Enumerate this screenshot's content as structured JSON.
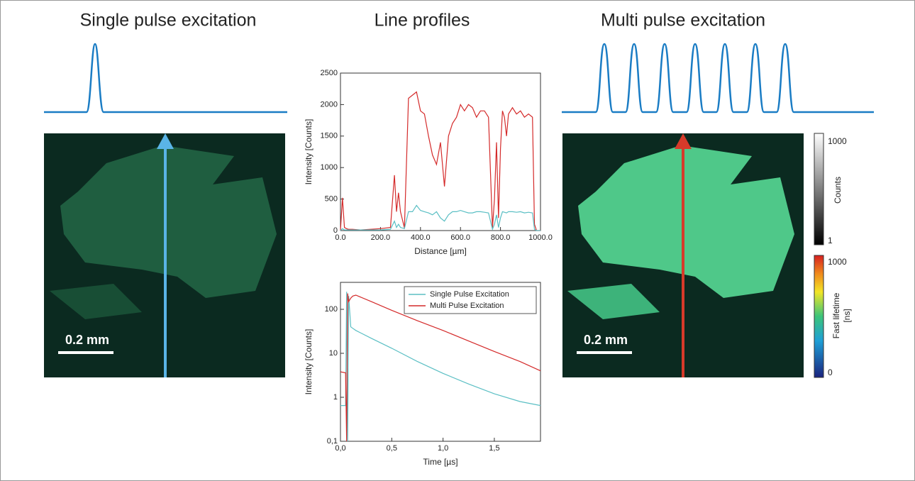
{
  "headings": [
    "Single pulse excitation",
    "Line profiles",
    "Multi pulse excitation"
  ],
  "scale_bars": [
    "0.2 mm",
    "0.2 mm"
  ],
  "colorbars": [
    {
      "max": "1000",
      "min": "1",
      "label": [
        "Counts"
      ]
    },
    {
      "max": "1000",
      "min": "0",
      "label": [
        "Fast lifetime",
        "[ns]"
      ]
    }
  ],
  "chart_data": [
    {
      "type": "line",
      "x_label": "Distance [µm]",
      "y_label": "Intensity [Counts]",
      "xlim": [
        0,
        1000
      ],
      "ylim": [
        0,
        2500
      ],
      "xticks": [
        {
          "value": 0,
          "label": "0.0"
        },
        {
          "value": 200,
          "label": "200.0"
        },
        {
          "value": 400,
          "label": "400.0"
        },
        {
          "value": 600,
          "label": "600.0"
        },
        {
          "value": 800,
          "label": "800.0"
        },
        {
          "value": 1000,
          "label": "1000.0"
        }
      ],
      "yticks": [
        0,
        500,
        1000,
        1500,
        2000,
        2500
      ],
      "x": [
        0,
        10,
        20,
        30,
        40,
        60,
        100,
        150,
        200,
        250,
        270,
        280,
        290,
        300,
        320,
        340,
        360,
        380,
        400,
        420,
        440,
        460,
        480,
        500,
        520,
        540,
        560,
        580,
        600,
        620,
        640,
        660,
        680,
        700,
        720,
        740,
        760,
        770,
        780,
        790,
        800,
        810,
        820,
        830,
        840,
        860,
        880,
        900,
        920,
        940,
        960,
        970,
        980,
        990,
        1000
      ],
      "series": [
        {
          "color": "#d42a2a",
          "values": [
            0,
            520,
            50,
            30,
            20,
            20,
            10,
            20,
            30,
            50,
            880,
            300,
            600,
            300,
            40,
            2100,
            2150,
            2200,
            1900,
            1850,
            1500,
            1200,
            1050,
            1400,
            700,
            1500,
            1700,
            1800,
            2000,
            1900,
            2000,
            1950,
            1800,
            1900,
            1900,
            1800,
            40,
            500,
            1400,
            200,
            1300,
            1900,
            1800,
            1500,
            1850,
            1950,
            1850,
            1900,
            1800,
            1850,
            1800,
            100,
            0,
            0,
            0
          ]
        },
        {
          "color": "#5bbfc4",
          "values": [
            0,
            30,
            10,
            10,
            10,
            10,
            10,
            10,
            10,
            20,
            150,
            50,
            100,
            50,
            30,
            300,
            300,
            400,
            320,
            300,
            280,
            250,
            300,
            200,
            150,
            250,
            300,
            300,
            320,
            300,
            280,
            280,
            300,
            300,
            290,
            280,
            20,
            100,
            250,
            50,
            200,
            300,
            290,
            280,
            300,
            300,
            290,
            300,
            280,
            290,
            280,
            20,
            0,
            0,
            0
          ]
        }
      ]
    },
    {
      "type": "line",
      "x_label": "Time [µs]",
      "y_label": "Intensity [Counts]",
      "log_y": true,
      "xlim": [
        0,
        1.95
      ],
      "ylim": [
        0.1,
        410
      ],
      "xticks": [
        {
          "value": 0,
          "label": "0,0"
        },
        {
          "value": 0.5,
          "label": "0,5"
        },
        {
          "value": 1,
          "label": "1,0"
        },
        {
          "value": 1.5,
          "label": "1,5"
        }
      ],
      "yticks": [
        {
          "value": 0.1,
          "label": "0,1"
        },
        1,
        10,
        100
      ],
      "legend": "upper right",
      "x": [
        0,
        0.05,
        0.06,
        0.07,
        0.08,
        0.1,
        0.12,
        0.15,
        0.3,
        0.5,
        0.75,
        1.0,
        1.25,
        1.5,
        1.75,
        1.95
      ],
      "series": [
        {
          "name": "Single Pulse Excitation",
          "color": "#5bbfc4",
          "values": [
            0.65,
            0.65,
            250,
            0.1,
            200,
            40,
            37,
            33,
            22,
            13,
            6.5,
            3.5,
            2.0,
            1.2,
            0.8,
            0.65
          ]
        },
        {
          "name": "Multi Pulse Excitation",
          "color": "#d42a2a",
          "values": [
            3.8,
            3.6,
            0.1,
            230,
            150,
            180,
            200,
            210,
            150,
            95,
            55,
            33,
            19,
            11,
            6.5,
            4.0
          ]
        }
      ]
    }
  ]
}
